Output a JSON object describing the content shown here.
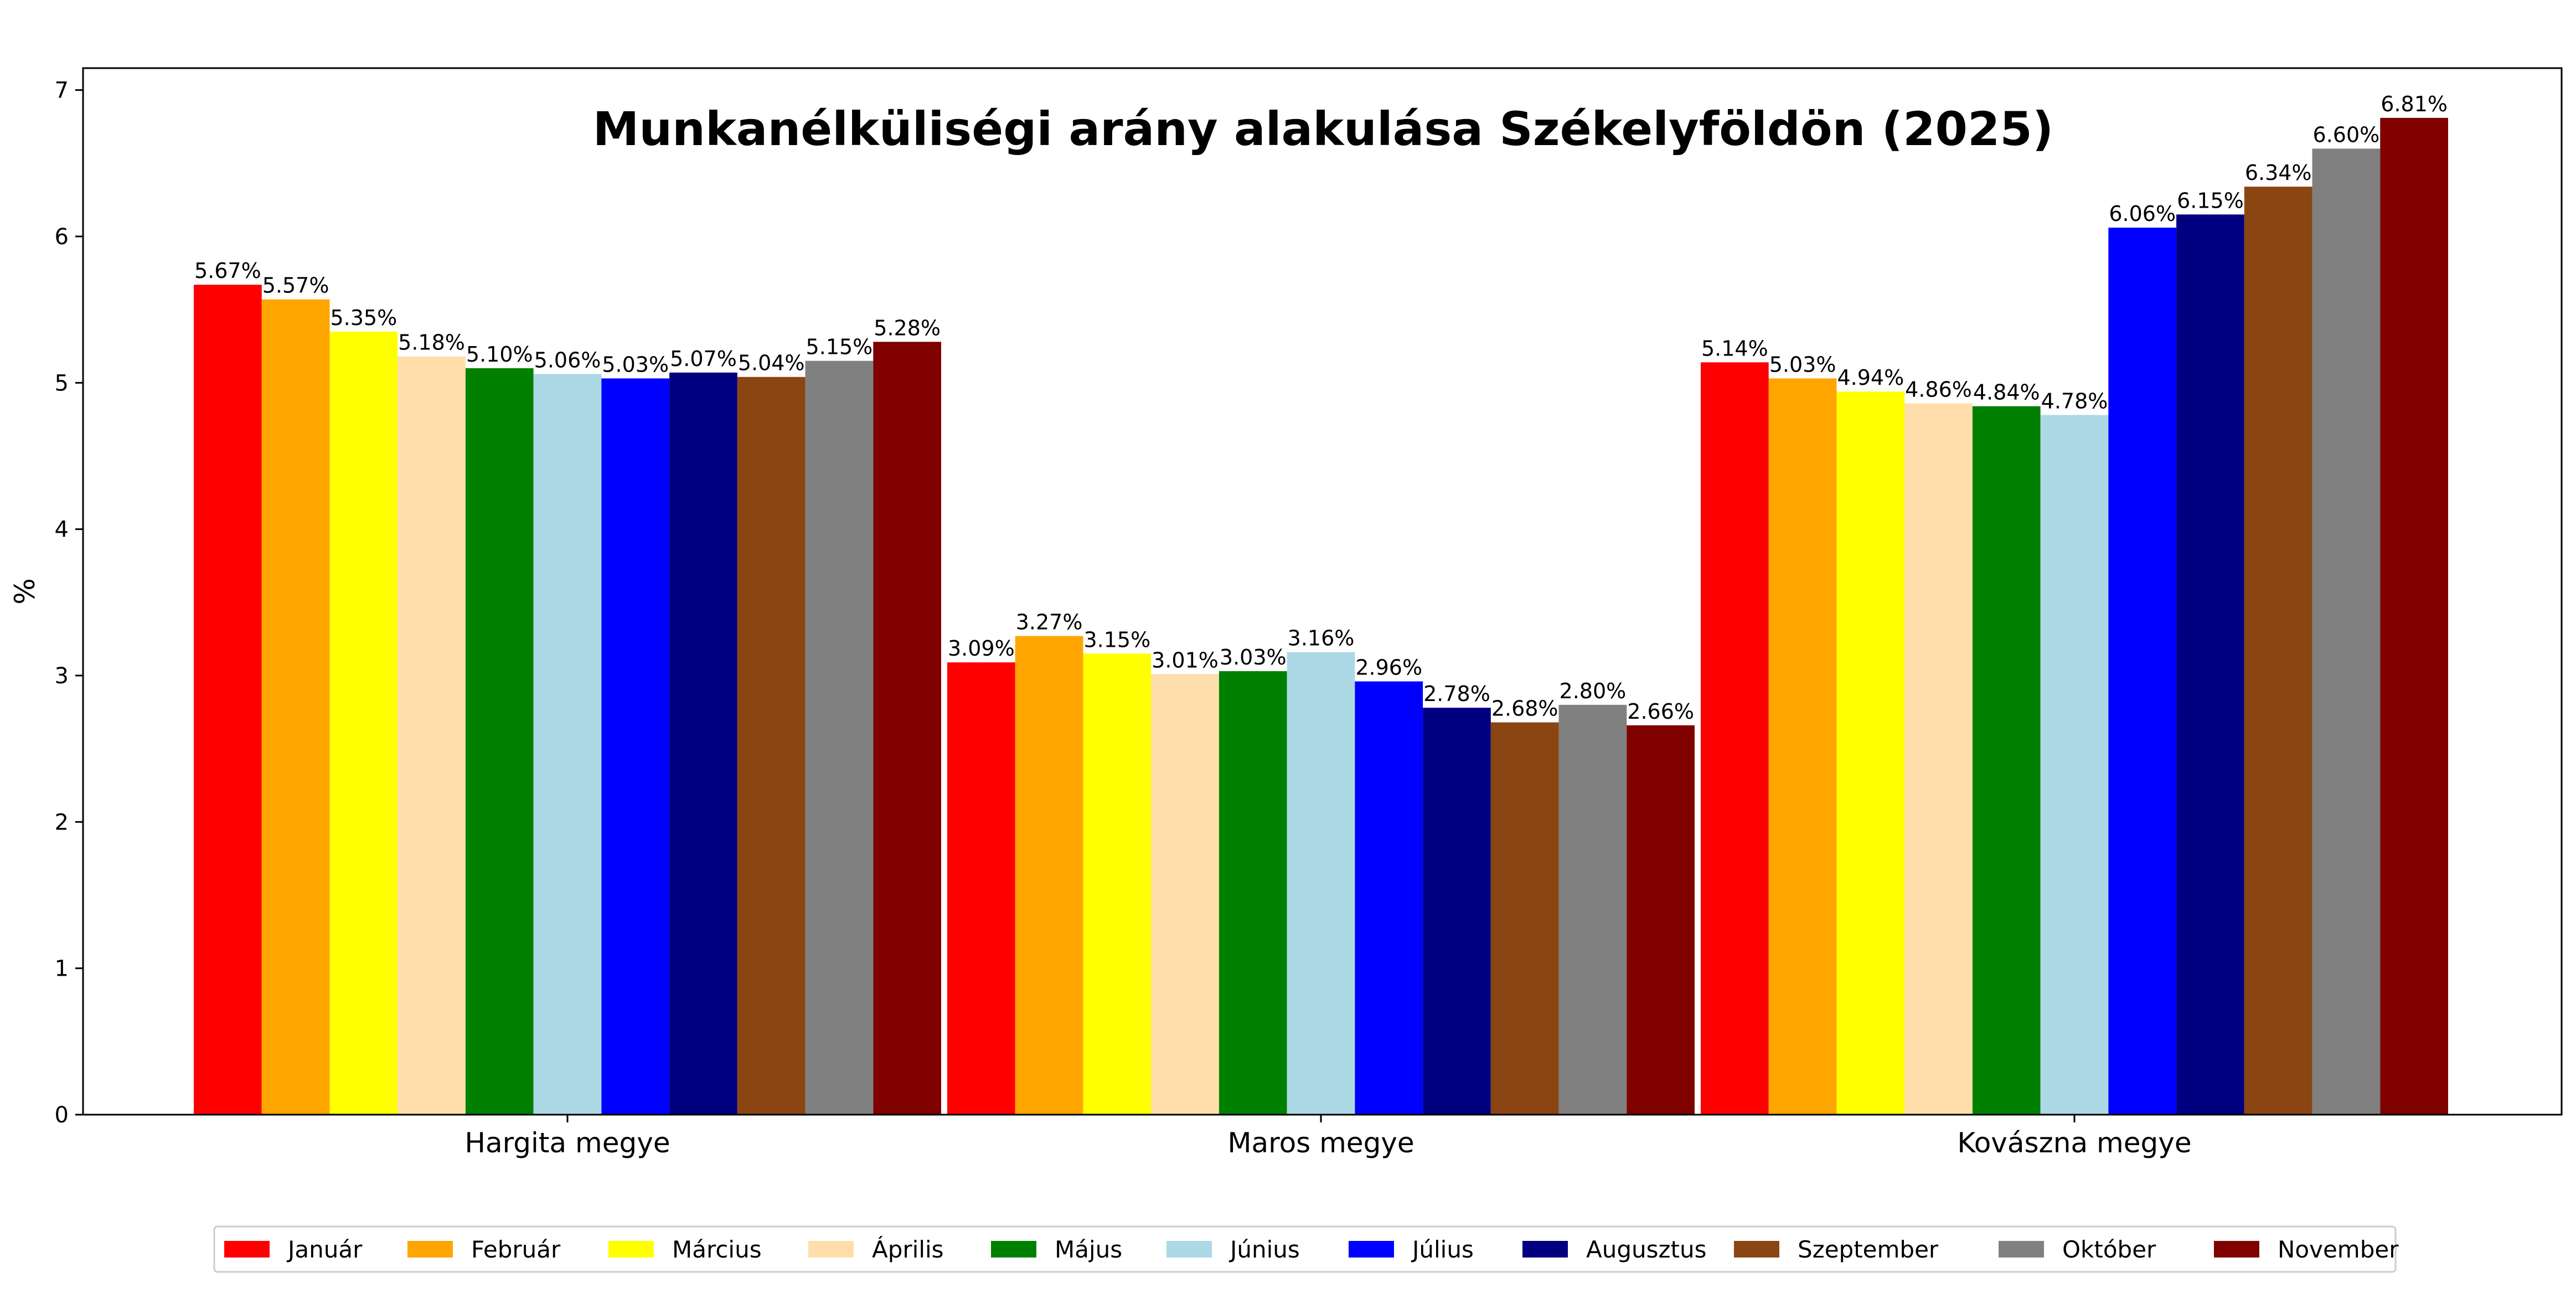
{
  "chart_data": {
    "type": "bar",
    "title": "Munkanélküliségi arány alakulása Székelyföldön (2025)",
    "ylabel": "%",
    "xlabel": "",
    "ylim": [
      0,
      7.15
    ],
    "yticks": [
      "0",
      "1",
      "2",
      "3",
      "4",
      "5",
      "6",
      "7"
    ],
    "grid": false,
    "legend_position": "bottom-center",
    "categories": [
      "Hargita megye",
      "Maros megye",
      "Kovászna megye"
    ],
    "series": [
      {
        "name": "Január",
        "color": "#ff0000",
        "values": [
          5.67,
          3.09,
          5.14
        ],
        "labels": [
          "5.67%",
          "3.09%",
          "5.14%"
        ]
      },
      {
        "name": "Február",
        "color": "#ffa500",
        "values": [
          5.57,
          3.27,
          5.03
        ],
        "labels": [
          "5.57%",
          "3.27%",
          "5.03%"
        ]
      },
      {
        "name": "Március",
        "color": "#ffff00",
        "values": [
          5.35,
          3.15,
          4.94
        ],
        "labels": [
          "5.35%",
          "3.15%",
          "4.94%"
        ]
      },
      {
        "name": "Április",
        "color": "#ffdeab",
        "values": [
          5.18,
          3.01,
          4.86
        ],
        "labels": [
          "5.18%",
          "3.01%",
          "4.86%"
        ]
      },
      {
        "name": "Május",
        "color": "#008000",
        "values": [
          5.1,
          3.03,
          4.84
        ],
        "labels": [
          "5.10%",
          "3.03%",
          "4.84%"
        ]
      },
      {
        "name": "Június",
        "color": "#add8e6",
        "values": [
          5.06,
          3.16,
          4.78
        ],
        "labels": [
          "5.06%",
          "3.16%",
          "4.78%"
        ]
      },
      {
        "name": "Július",
        "color": "#0000ff",
        "values": [
          5.03,
          2.96,
          6.06
        ],
        "labels": [
          "5.03%",
          "2.96%",
          "6.06%"
        ]
      },
      {
        "name": "Augusztus",
        "color": "#000080",
        "values": [
          5.07,
          2.78,
          6.15
        ],
        "labels": [
          "5.07%",
          "2.78%",
          "6.15%"
        ]
      },
      {
        "name": "Szeptember",
        "color": "#8b4513",
        "values": [
          5.04,
          2.68,
          6.34
        ],
        "labels": [
          "5.04%",
          "2.68%",
          "6.34%"
        ]
      },
      {
        "name": "Október",
        "color": "#808080",
        "values": [
          5.15,
          2.8,
          6.6
        ],
        "labels": [
          "5.15%",
          "2.80%",
          "6.60%"
        ]
      },
      {
        "name": "November",
        "color": "#800000",
        "values": [
          5.28,
          2.66,
          6.81
        ],
        "labels": [
          "5.28%",
          "2.66%",
          "6.81%"
        ]
      }
    ]
  }
}
